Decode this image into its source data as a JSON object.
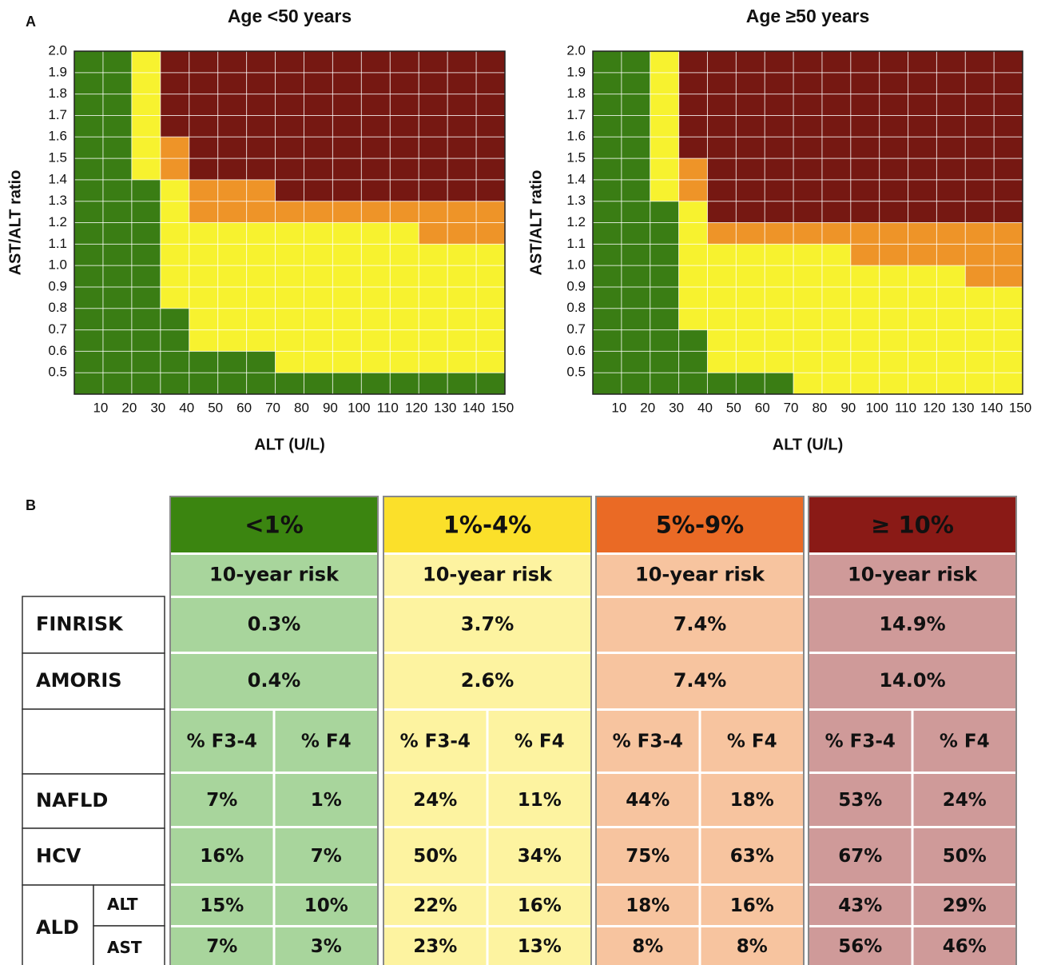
{
  "panel_labels": [
    "A",
    "B"
  ],
  "chart_data": [
    {
      "type": "heatmap",
      "title": "Age <50 years",
      "x_label": "ALT (U/L)",
      "y_label": "AST/ALT ratio",
      "xlim": [
        0,
        150
      ],
      "xticks": [
        10,
        20,
        30,
        40,
        50,
        60,
        70,
        80,
        90,
        100,
        110,
        120,
        130,
        140,
        150
      ],
      "ylim": [
        0.4,
        2
      ],
      "yticks": [
        0.5,
        0.6,
        0.7,
        0.8,
        0.9,
        {
          "value": 1,
          "label": "1.0"
        },
        1.1,
        1.2,
        1.3,
        1.4,
        1.5,
        1.6,
        1.7,
        1.8,
        1.9,
        {
          "value": 2,
          "label": "2.0"
        }
      ],
      "grid": true,
      "colors": [
        "#3a7d14",
        "#f7f22f",
        "#ee9428",
        "#761812"
      ],
      "cells": [
        [
          0,
          0,
          1,
          3,
          3,
          3,
          3,
          3,
          3,
          3,
          3,
          3,
          3,
          3,
          3
        ],
        [
          0,
          0,
          1,
          3,
          3,
          3,
          3,
          3,
          3,
          3,
          3,
          3,
          3,
          3,
          3
        ],
        [
          0,
          0,
          1,
          3,
          3,
          3,
          3,
          3,
          3,
          3,
          3,
          3,
          3,
          3,
          3
        ],
        [
          0,
          0,
          1,
          3,
          3,
          3,
          3,
          3,
          3,
          3,
          3,
          3,
          3,
          3,
          3
        ],
        [
          0,
          0,
          1,
          2,
          3,
          3,
          3,
          3,
          3,
          3,
          3,
          3,
          3,
          3,
          3
        ],
        [
          0,
          0,
          1,
          2,
          3,
          3,
          3,
          3,
          3,
          3,
          3,
          3,
          3,
          3,
          3
        ],
        [
          0,
          0,
          0,
          1,
          2,
          2,
          2,
          3,
          3,
          3,
          3,
          3,
          3,
          3,
          3
        ],
        [
          0,
          0,
          0,
          1,
          2,
          2,
          2,
          2,
          2,
          2,
          2,
          2,
          2,
          2,
          2
        ],
        [
          0,
          0,
          0,
          1,
          1,
          1,
          1,
          1,
          1,
          1,
          1,
          1,
          2,
          2,
          2
        ],
        [
          0,
          0,
          0,
          1,
          1,
          1,
          1,
          1,
          1,
          1,
          1,
          1,
          1,
          1,
          1
        ],
        [
          0,
          0,
          0,
          1,
          1,
          1,
          1,
          1,
          1,
          1,
          1,
          1,
          1,
          1,
          1
        ],
        [
          0,
          0,
          0,
          1,
          1,
          1,
          1,
          1,
          1,
          1,
          1,
          1,
          1,
          1,
          1
        ],
        [
          0,
          0,
          0,
          0,
          1,
          1,
          1,
          1,
          1,
          1,
          1,
          1,
          1,
          1,
          1
        ],
        [
          0,
          0,
          0,
          0,
          1,
          1,
          1,
          1,
          1,
          1,
          1,
          1,
          1,
          1,
          1
        ],
        [
          0,
          0,
          0,
          0,
          0,
          0,
          0,
          1,
          1,
          1,
          1,
          1,
          1,
          1,
          1
        ],
        [
          0,
          0,
          0,
          0,
          0,
          0,
          0,
          0,
          0,
          0,
          0,
          0,
          0,
          0,
          0
        ]
      ]
    },
    {
      "type": "heatmap",
      "title": "Age ≥50 years",
      "x_label": "ALT (U/L)",
      "y_label": "AST/ALT ratio",
      "xlim": [
        0,
        150
      ],
      "xticks": [
        10,
        20,
        30,
        40,
        50,
        60,
        70,
        80,
        90,
        100,
        110,
        120,
        130,
        140,
        150
      ],
      "ylim": [
        0.4,
        2
      ],
      "yticks": [
        0.5,
        0.6,
        0.7,
        0.8,
        0.9,
        {
          "value": 1,
          "label": "1.0"
        },
        1.1,
        1.2,
        1.3,
        1.4,
        1.5,
        1.6,
        1.7,
        1.8,
        1.9,
        {
          "value": 2,
          "label": "2.0"
        }
      ],
      "grid": true,
      "colors": [
        "#3a7d14",
        "#f7f22f",
        "#ee9428",
        "#761812"
      ],
      "cells": [
        [
          0,
          0,
          1,
          3,
          3,
          3,
          3,
          3,
          3,
          3,
          3,
          3,
          3,
          3,
          3
        ],
        [
          0,
          0,
          1,
          3,
          3,
          3,
          3,
          3,
          3,
          3,
          3,
          3,
          3,
          3,
          3
        ],
        [
          0,
          0,
          1,
          3,
          3,
          3,
          3,
          3,
          3,
          3,
          3,
          3,
          3,
          3,
          3
        ],
        [
          0,
          0,
          1,
          3,
          3,
          3,
          3,
          3,
          3,
          3,
          3,
          3,
          3,
          3,
          3
        ],
        [
          0,
          0,
          1,
          3,
          3,
          3,
          3,
          3,
          3,
          3,
          3,
          3,
          3,
          3,
          3
        ],
        [
          0,
          0,
          1,
          2,
          3,
          3,
          3,
          3,
          3,
          3,
          3,
          3,
          3,
          3,
          3
        ],
        [
          0,
          0,
          1,
          2,
          3,
          3,
          3,
          3,
          3,
          3,
          3,
          3,
          3,
          3,
          3
        ],
        [
          0,
          0,
          0,
          1,
          3,
          3,
          3,
          3,
          3,
          3,
          3,
          3,
          3,
          3,
          3
        ],
        [
          0,
          0,
          0,
          1,
          2,
          2,
          2,
          2,
          2,
          2,
          2,
          2,
          2,
          2,
          2
        ],
        [
          0,
          0,
          0,
          1,
          1,
          1,
          1,
          1,
          1,
          2,
          2,
          2,
          2,
          2,
          2
        ],
        [
          0,
          0,
          0,
          1,
          1,
          1,
          1,
          1,
          1,
          1,
          1,
          1,
          1,
          2,
          2
        ],
        [
          0,
          0,
          0,
          1,
          1,
          1,
          1,
          1,
          1,
          1,
          1,
          1,
          1,
          1,
          1
        ],
        [
          0,
          0,
          0,
          1,
          1,
          1,
          1,
          1,
          1,
          1,
          1,
          1,
          1,
          1,
          1
        ],
        [
          0,
          0,
          0,
          0,
          1,
          1,
          1,
          1,
          1,
          1,
          1,
          1,
          1,
          1,
          1
        ],
        [
          0,
          0,
          0,
          0,
          1,
          1,
          1,
          1,
          1,
          1,
          1,
          1,
          1,
          1,
          1
        ],
        [
          0,
          0,
          0,
          0,
          0,
          0,
          0,
          1,
          1,
          1,
          1,
          1,
          1,
          1,
          1
        ]
      ]
    }
  ],
  "table": {
    "groups": [
      {
        "label": "<1%",
        "header_color": "#3b8510",
        "body_color": "#a8d59c"
      },
      {
        "label": "1%-4%",
        "header_color": "#fbe02a",
        "body_color": "#fdf3a0"
      },
      {
        "label": "5%-9%",
        "header_color": "#ea6a25",
        "body_color": "#f7c49f"
      },
      {
        "label": "≥ 10%",
        "header_color": "#8a1a16",
        "body_color": "#cf9a99"
      }
    ],
    "subheader": "10-year risk",
    "risk_rows": [
      {
        "name": "FINRISK",
        "values": [
          "0.3%",
          "3.7%",
          "7.4%",
          "14.9%"
        ]
      },
      {
        "name": "AMORIS",
        "values": [
          "0.4%",
          "2.6%",
          "7.4%",
          "14.0%"
        ]
      }
    ],
    "fibrosis_headers": [
      "% F3-4",
      "% F4"
    ],
    "fibrosis_rows": [
      {
        "name": "NAFLD",
        "values": [
          [
            "7%",
            "1%"
          ],
          [
            "24%",
            "11%"
          ],
          [
            "44%",
            "18%"
          ],
          [
            "53%",
            "24%"
          ]
        ]
      },
      {
        "name": "HCV",
        "values": [
          [
            "16%",
            "7%"
          ],
          [
            "50%",
            "34%"
          ],
          [
            "75%",
            "63%"
          ],
          [
            "67%",
            "50%"
          ]
        ]
      },
      {
        "name": "ALD",
        "sub": [
          {
            "name": "ALT",
            "values": [
              [
                "15%",
                "10%"
              ],
              [
                "22%",
                "16%"
              ],
              [
                "18%",
                "16%"
              ],
              [
                "43%",
                "29%"
              ]
            ]
          },
          {
            "name": "AST",
            "values": [
              [
                "7%",
                "3%"
              ],
              [
                "23%",
                "13%"
              ],
              [
                "8%",
                "8%"
              ],
              [
                "56%",
                "46%"
              ]
            ]
          }
        ]
      }
    ]
  }
}
